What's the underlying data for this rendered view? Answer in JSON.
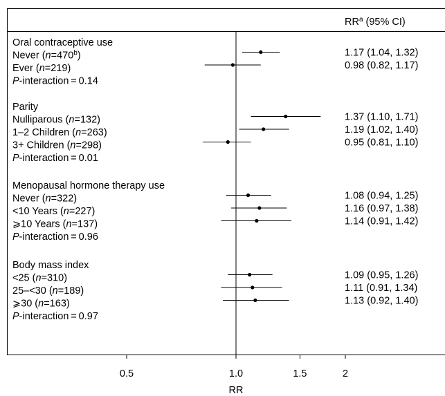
{
  "chart_data": {
    "type": "forest",
    "header": {
      "rr_label": "RR",
      "rr_sup": "a",
      "ci_label": " (95% CI)"
    },
    "xlabel": "RR",
    "x_scale": "log",
    "xlim": [
      0.35,
      2.6
    ],
    "ref_line": 1.0,
    "xticks": [
      {
        "v": 0.5,
        "label": "0.5"
      },
      {
        "v": 1.0,
        "label": "1.0"
      },
      {
        "v": 1.5,
        "label": "1.5"
      },
      {
        "v": 2.0,
        "label": "2"
      }
    ],
    "groups": [
      {
        "title": "Oral contraceptive use",
        "rows": [
          {
            "label": "Never",
            "n_prefix": " (",
            "n_italic": "n",
            "n_text": "=470",
            "n_sup": "b",
            "n_suffix": ")",
            "rr": 1.17,
            "lo": 1.04,
            "hi": 1.32,
            "ci_text": "1.17 (1.04, 1.32)"
          },
          {
            "label": "Ever",
            "n_prefix": " (",
            "n_italic": "n",
            "n_text": "=219",
            "n_sup": "",
            "n_suffix": ")",
            "rr": 0.98,
            "lo": 0.82,
            "hi": 1.17,
            "ci_text": "0.98 (0.82, 1.17)"
          }
        ],
        "p_italic": "P",
        "p_text": "-interaction = 0.14"
      },
      {
        "title": "Parity",
        "rows": [
          {
            "label": "Nulliparous",
            "n_prefix": " (",
            "n_italic": "n",
            "n_text": "=132",
            "n_sup": "",
            "n_suffix": ")",
            "rr": 1.37,
            "lo": 1.1,
            "hi": 1.71,
            "ci_text": "1.37 (1.10, 1.71)"
          },
          {
            "label": "1–2 Children",
            "n_prefix": " (",
            "n_italic": "n",
            "n_text": "=263",
            "n_sup": "",
            "n_suffix": ")",
            "rr": 1.19,
            "lo": 1.02,
            "hi": 1.4,
            "ci_text": "1.19 (1.02, 1.40)"
          },
          {
            "label": "3+ Children",
            "n_prefix": " (",
            "n_italic": "n",
            "n_text": "=298",
            "n_sup": "",
            "n_suffix": ")",
            "rr": 0.95,
            "lo": 0.81,
            "hi": 1.1,
            "ci_text": "0.95 (0.81, 1.10)"
          }
        ],
        "p_italic": "P",
        "p_text": "-interaction = 0.01"
      },
      {
        "title": "Menopausal hormone therapy use",
        "rows": [
          {
            "label": "Never",
            "n_prefix": " (",
            "n_italic": "n",
            "n_text": "=322",
            "n_sup": "",
            "n_suffix": ")",
            "rr": 1.08,
            "lo": 0.94,
            "hi": 1.25,
            "ci_text": "1.08 (0.94, 1.25)"
          },
          {
            "label": "<10 Years",
            "n_prefix": " (",
            "n_italic": "n",
            "n_text": "=227",
            "n_sup": "",
            "n_suffix": ")",
            "rr": 1.16,
            "lo": 0.97,
            "hi": 1.38,
            "ci_text": "1.16 (0.97, 1.38)"
          },
          {
            "label": "⩾10 Years",
            "n_prefix": " (",
            "n_italic": "n",
            "n_text": "=137",
            "n_sup": "",
            "n_suffix": ")",
            "rr": 1.14,
            "lo": 0.91,
            "hi": 1.42,
            "ci_text": "1.14 (0.91, 1.42)"
          }
        ],
        "p_italic": "P",
        "p_text": "-interaction = 0.96"
      },
      {
        "title": "Body mass index",
        "rows": [
          {
            "label": "<25",
            "n_prefix": " (",
            "n_italic": "n",
            "n_text": "=310",
            "n_sup": "",
            "n_suffix": ")",
            "rr": 1.09,
            "lo": 0.95,
            "hi": 1.26,
            "ci_text": "1.09 (0.95, 1.26)"
          },
          {
            "label": "25–<30",
            "n_prefix": " (",
            "n_italic": "n",
            "n_text": "=189",
            "n_sup": "",
            "n_suffix": ")",
            "rr": 1.11,
            "lo": 0.91,
            "hi": 1.34,
            "ci_text": "1.11 (0.91, 1.34)"
          },
          {
            "label": "⩾30",
            "n_prefix": " (",
            "n_italic": "n",
            "n_text": "=163",
            "n_sup": "",
            "n_suffix": ")",
            "rr": 1.13,
            "lo": 0.92,
            "hi": 1.4,
            "ci_text": "1.13 (0.92, 1.40)"
          }
        ],
        "p_italic": "P",
        "p_text": "-interaction = 0.97"
      }
    ]
  }
}
